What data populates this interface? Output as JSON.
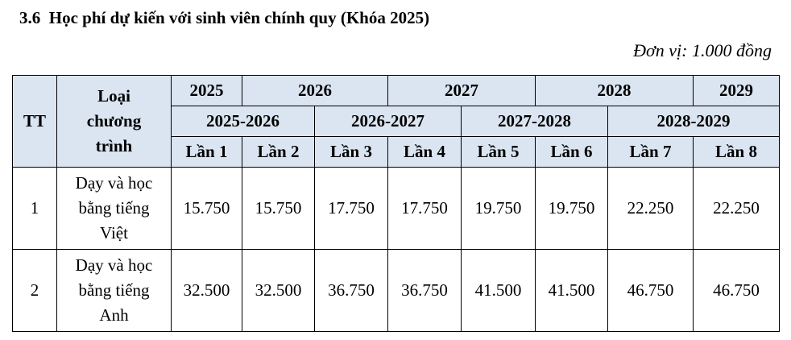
{
  "header": {
    "title": "3.6  Học phí dự kiến với sinh viên chính quy (Khóa 2025)",
    "unit": "Đơn vị: 1.000 đồng"
  },
  "table": {
    "headers": {
      "tt": "TT",
      "program": "Loại chương trình",
      "years": [
        "2025",
        "2026",
        "2027",
        "2028",
        "2029"
      ],
      "school_years": [
        "2025-2026",
        "2026-2027",
        "2027-2028",
        "2028-2029"
      ],
      "installments": [
        "Lần 1",
        "Lần 2",
        "Lần 3",
        "Lần 4",
        "Lần 5",
        "Lần 6",
        "Lần 7",
        "Lần 8"
      ]
    },
    "rows": [
      [
        "1",
        "Dạy và học bằng tiếng Việt",
        "15.750",
        "15.750",
        "17.750",
        "17.750",
        "19.750",
        "19.750",
        "22.250",
        "22.250"
      ],
      [
        "2",
        "Dạy và học bằng tiếng Anh",
        "32.500",
        "32.500",
        "36.750",
        "36.750",
        "41.500",
        "41.500",
        "46.750",
        "46.750"
      ]
    ]
  }
}
